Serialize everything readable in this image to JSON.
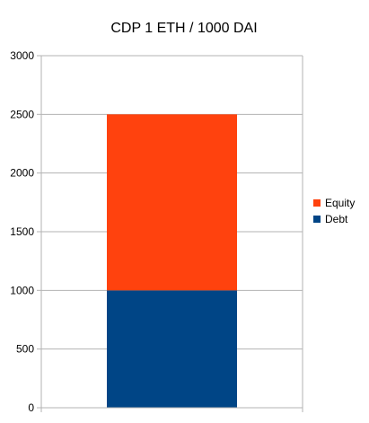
{
  "chart_data": {
    "type": "bar",
    "stacked": true,
    "title": "CDP 1 ETH / 1000 DAI",
    "categories": [
      ""
    ],
    "series": [
      {
        "name": "Debt",
        "values": [
          1000
        ],
        "color": "#004586"
      },
      {
        "name": "Equity",
        "values": [
          1500
        ],
        "color": "#ff420e"
      }
    ],
    "ylim": [
      0,
      3000
    ],
    "yticks": [
      0,
      500,
      1000,
      1500,
      2000,
      2500,
      3000
    ],
    "grid": true,
    "legend_position": "right",
    "legend_order": [
      "Equity",
      "Debt"
    ]
  }
}
